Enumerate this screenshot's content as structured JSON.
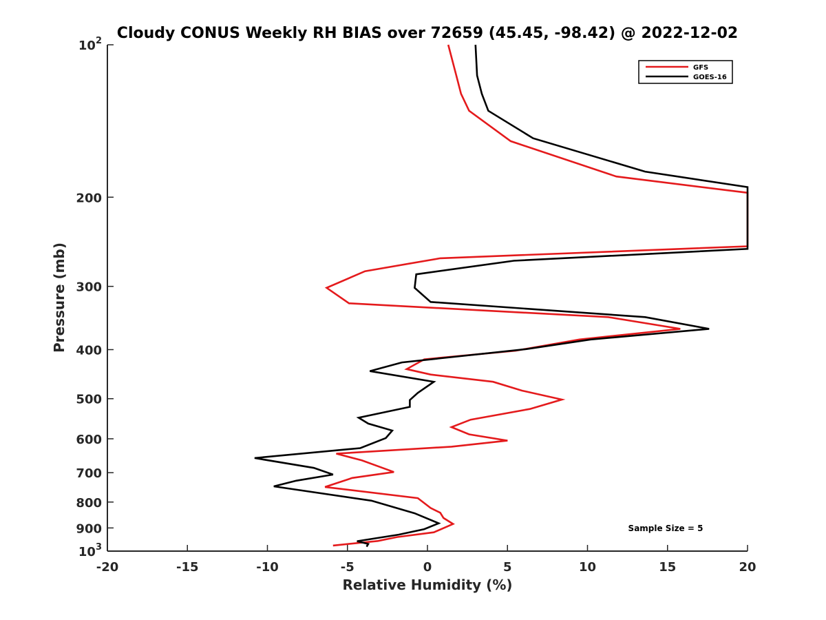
{
  "chart_data": {
    "type": "line",
    "title": "Cloudy CONUS Weekly RH BIAS over 72659 (45.45, -98.42) @ 2022-12-02",
    "xlabel": "Relative Humidity (%)",
    "ylabel": "Pressure (mb)",
    "xlim": [
      -20,
      20
    ],
    "ylim": [
      1000,
      100
    ],
    "yscale": "log-reversed",
    "x_ticks": [
      "-20",
      "-15",
      "-10",
      "-5",
      "0",
      "5",
      "10",
      "15",
      "20"
    ],
    "y_ticks": [
      {
        "value": 100,
        "label": "10",
        "sup": "2"
      },
      {
        "value": 200,
        "label": "200",
        "sup": ""
      },
      {
        "value": 300,
        "label": "300",
        "sup": ""
      },
      {
        "value": 400,
        "label": "400",
        "sup": ""
      },
      {
        "value": 500,
        "label": "500",
        "sup": ""
      },
      {
        "value": 600,
        "label": "600",
        "sup": ""
      },
      {
        "value": 700,
        "label": "700",
        "sup": ""
      },
      {
        "value": 800,
        "label": "800",
        "sup": ""
      },
      {
        "value": 900,
        "label": "900",
        "sup": ""
      },
      {
        "value": 1000,
        "label": "10",
        "sup": "3"
      }
    ],
    "grid": false,
    "legend_position": "top-right",
    "annotation": "Sample Size = 5",
    "series": [
      {
        "name": "GFS",
        "color": "#e41a1c",
        "points": [
          [
            1.3,
            100
          ],
          [
            1.8,
            115
          ],
          [
            2.1,
            125
          ],
          [
            2.6,
            135
          ],
          [
            5.2,
            155
          ],
          [
            11.8,
            182
          ],
          [
            20,
            196
          ],
          [
            20,
            250
          ],
          [
            0.8,
            264
          ],
          [
            -3.9,
            280
          ],
          [
            -6.3,
            302
          ],
          [
            -4.9,
            324
          ],
          [
            11.3,
            345
          ],
          [
            15.8,
            364
          ],
          [
            9.5,
            382
          ],
          [
            5.5,
            402
          ],
          [
            -0.2,
            418
          ],
          [
            -1.3,
            437
          ],
          [
            0.2,
            448
          ],
          [
            4.1,
            463
          ],
          [
            5.9,
            482
          ],
          [
            8.4,
            502
          ],
          [
            6.4,
            524
          ],
          [
            2.7,
            550
          ],
          [
            1.5,
            569
          ],
          [
            2.6,
            588
          ],
          [
            5.0,
            605
          ],
          [
            1.5,
            622
          ],
          [
            -5.7,
            642
          ],
          [
            -4.1,
            662
          ],
          [
            -2.1,
            698
          ],
          [
            -4.7,
            717
          ],
          [
            -6.4,
            747
          ],
          [
            -0.6,
            786
          ],
          [
            0.2,
            822
          ],
          [
            0.8,
            840
          ],
          [
            1.0,
            860
          ],
          [
            1.6,
            884
          ],
          [
            0.4,
            918
          ],
          [
            -1.9,
            938
          ],
          [
            -3.1,
            955
          ],
          [
            -5.9,
            975
          ]
        ]
      },
      {
        "name": "GOES-16",
        "color": "#000000",
        "points": [
          [
            3.0,
            100
          ],
          [
            3.1,
            115
          ],
          [
            3.4,
            125
          ],
          [
            3.8,
            135
          ],
          [
            6.6,
            153
          ],
          [
            13.6,
            178
          ],
          [
            20,
            191
          ],
          [
            20,
            253
          ],
          [
            5.4,
            267
          ],
          [
            -0.7,
            284
          ],
          [
            -0.8,
            302
          ],
          [
            0.2,
            322
          ],
          [
            13.6,
            345
          ],
          [
            17.6,
            364
          ],
          [
            10.2,
            382
          ],
          [
            6.2,
            399
          ],
          [
            -1.6,
            424
          ],
          [
            -3.6,
            441
          ],
          [
            0.4,
            463
          ],
          [
            -0.6,
            487
          ],
          [
            -1.1,
            503
          ],
          [
            -1.1,
            519
          ],
          [
            -4.3,
            545
          ],
          [
            -3.7,
            560
          ],
          [
            -2.2,
            578
          ],
          [
            -2.6,
            598
          ],
          [
            -4.2,
            626
          ],
          [
            -10.8,
            655
          ],
          [
            -7.1,
            685
          ],
          [
            -5.9,
            706
          ],
          [
            -8.2,
            726
          ],
          [
            -9.6,
            745
          ],
          [
            -3.5,
            795
          ],
          [
            -0.8,
            842
          ],
          [
            0.7,
            881
          ],
          [
            -0.2,
            905
          ],
          [
            -1.8,
            928
          ],
          [
            -4.4,
            956
          ],
          [
            -3.7,
            968
          ],
          [
            -3.8,
            980
          ]
        ]
      }
    ]
  }
}
